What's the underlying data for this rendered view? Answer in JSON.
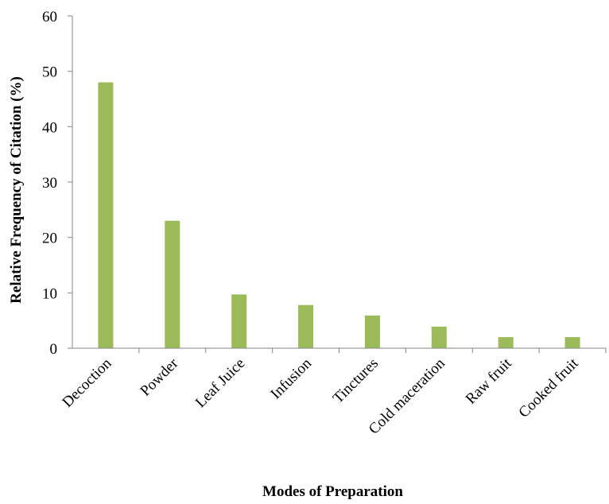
{
  "chart_data": {
    "type": "bar",
    "title": "",
    "xlabel": "Modes of Preparation",
    "ylabel": "Relative Frequency of Citation (%)",
    "categories": [
      "Decoction",
      "Powder",
      "Leaf Juice",
      "Infusion",
      "Tinctures",
      "Cold maceration",
      "Raw fruit",
      "Cooked fruit"
    ],
    "values": [
      48,
      23,
      9.7,
      7.8,
      5.9,
      3.9,
      2,
      2
    ],
    "ylim": [
      0,
      60
    ],
    "yticks": [
      "0",
      "10",
      "20",
      "30",
      "40",
      "50",
      "60"
    ],
    "grid": false,
    "legend": "none",
    "bar_color": "#9bbb59",
    "axis_color": "#868686"
  }
}
